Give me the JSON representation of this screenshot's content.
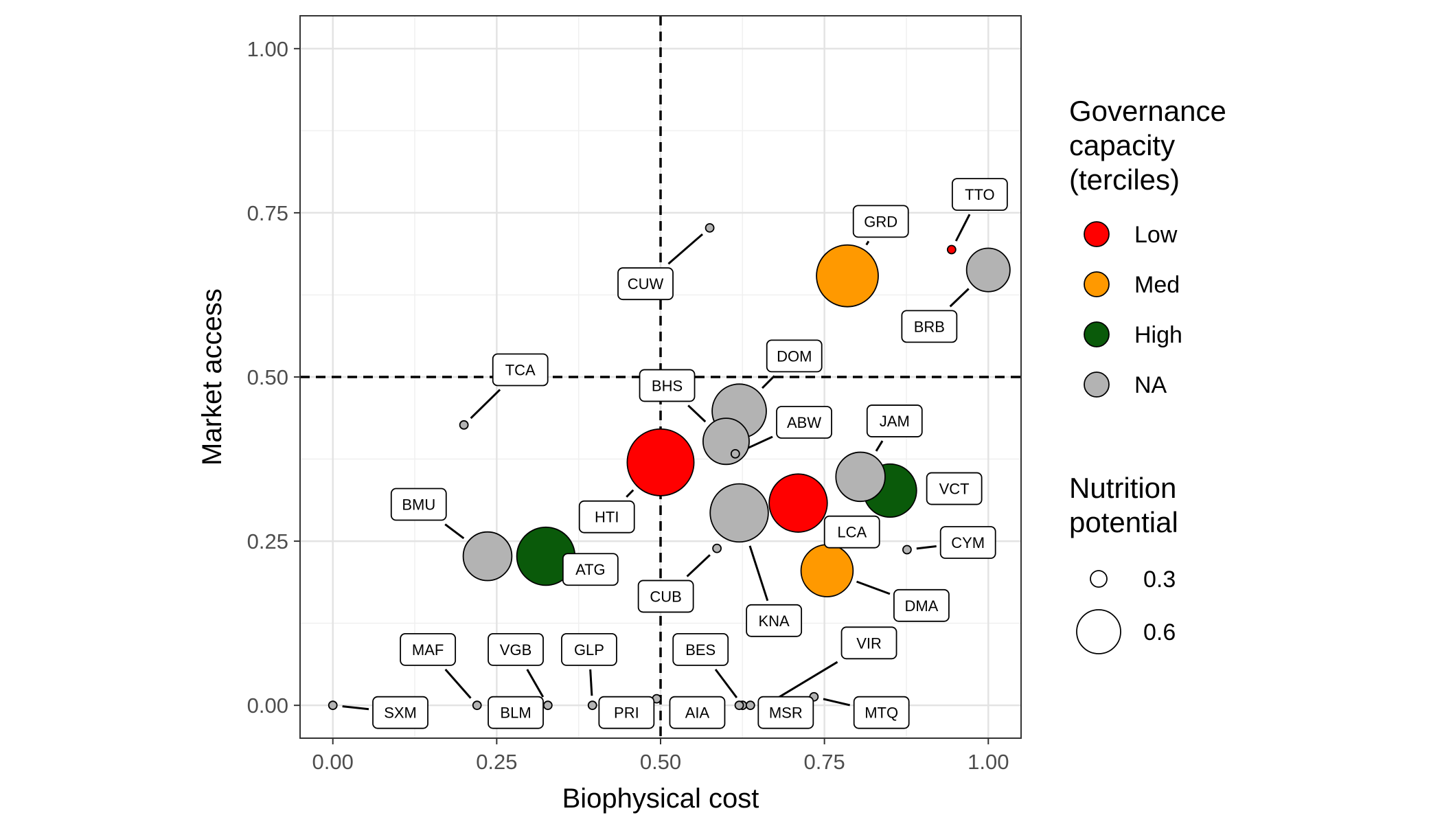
{
  "chart_data": {
    "type": "scatter",
    "xlabel": "Biophysical cost",
    "ylabel": "Market access",
    "xlim": [
      -0.05,
      1.05
    ],
    "ylim": [
      -0.05,
      1.05
    ],
    "x_ticks": [
      0,
      0.25,
      0.5,
      0.75,
      1
    ],
    "x_tick_labels": [
      "0.00",
      "0.25",
      "0.50",
      "0.75",
      "1.00"
    ],
    "y_ticks": [
      0,
      0.25,
      0.5,
      0.75,
      1
    ],
    "y_tick_labels": [
      "0.00",
      "0.25",
      "0.50",
      "0.75",
      "1.00"
    ],
    "grid": true,
    "reference_lines": {
      "x": 0.5,
      "y": 0.5,
      "style": "dashed"
    },
    "legend_placement": "right",
    "color_legend": {
      "title": [
        "Governance",
        "capacity",
        "(terciles)"
      ],
      "entries": [
        {
          "key": "Low",
          "label": "Low",
          "color": "#ff0000"
        },
        {
          "key": "Med",
          "label": "Med",
          "color": "#ff9900"
        },
        {
          "key": "High",
          "label": "High",
          "color": "#0a5a0a"
        },
        {
          "key": "NA",
          "label": "NA",
          "color": "#b3b3b3"
        }
      ]
    },
    "size_legend": {
      "title": [
        "Nutrition",
        "potential"
      ],
      "entries": [
        {
          "value": 0.3,
          "label": "0.3"
        },
        {
          "value": 0.6,
          "label": "0.6"
        }
      ]
    },
    "points": [
      {
        "label": "TTO",
        "x": 0.944,
        "y": 0.694,
        "size": 0.05,
        "group": "Low",
        "lx": 0.987,
        "ly": 0.778
      },
      {
        "label": "GRD",
        "x": 0.785,
        "y": 0.654,
        "size": 0.6,
        "group": "Med",
        "lx": 0.836,
        "ly": 0.737
      },
      {
        "label": "BRB",
        "x": 1.0,
        "y": 0.663,
        "size": 0.26,
        "group": "NA",
        "lx": 0.91,
        "ly": 0.577
      },
      {
        "label": "CUW",
        "x": 0.575,
        "y": 0.727,
        "size": 0.05,
        "group": "NA",
        "lx": 0.477,
        "ly": 0.642
      },
      {
        "label": "DOM",
        "x": 0.62,
        "y": 0.448,
        "size": 0.44,
        "group": "NA",
        "lx": 0.704,
        "ly": 0.532
      },
      {
        "label": "TCA",
        "x": 0.2,
        "y": 0.427,
        "size": 0.05,
        "group": "NA",
        "lx": 0.286,
        "ly": 0.511
      },
      {
        "label": "BHS",
        "x": 0.6,
        "y": 0.402,
        "size": 0.3,
        "group": "NA",
        "lx": 0.51,
        "ly": 0.487
      },
      {
        "label": "ABW",
        "x": 0.614,
        "y": 0.383,
        "size": 0.05,
        "group": "NA",
        "lx": 0.719,
        "ly": 0.431
      },
      {
        "label": "JAM",
        "x": 0.805,
        "y": 0.348,
        "size": 0.35,
        "group": "NA",
        "lx": 0.857,
        "ly": 0.433
      },
      {
        "label": "HTI",
        "x": 0.5,
        "y": 0.37,
        "size": 0.72,
        "group": "Low",
        "lx": 0.418,
        "ly": 0.287
      },
      {
        "label": "VCT",
        "x": 0.85,
        "y": 0.327,
        "size": 0.42,
        "group": "High",
        "lx": 0.948,
        "ly": 0.33
      },
      {
        "label": "BMU",
        "x": 0.236,
        "y": 0.227,
        "size": 0.34,
        "group": "NA",
        "lx": 0.131,
        "ly": 0.306
      },
      {
        "label": "LCA",
        "x": 0.71,
        "y": 0.308,
        "size": 0.52,
        "group": "Low",
        "lx": 0.792,
        "ly": 0.264
      },
      {
        "label": "KNA",
        "x": 0.62,
        "y": 0.293,
        "size": 0.52,
        "group": "NA",
        "lx": 0.673,
        "ly": 0.129
      },
      {
        "label": "ATG",
        "x": 0.325,
        "y": 0.227,
        "size": 0.52,
        "group": "High",
        "lx": 0.393,
        "ly": 0.207
      },
      {
        "label": "CYM",
        "x": 0.876,
        "y": 0.237,
        "size": 0.05,
        "group": "NA",
        "lx": 0.969,
        "ly": 0.248
      },
      {
        "label": "CUB",
        "x": 0.586,
        "y": 0.239,
        "size": 0.05,
        "group": "NA",
        "lx": 0.508,
        "ly": 0.166
      },
      {
        "label": "DMA",
        "x": 0.754,
        "y": 0.205,
        "size": 0.4,
        "group": "Med",
        "lx": 0.898,
        "ly": 0.152
      },
      {
        "label": "MAF",
        "x": 0.22,
        "y": 0.0,
        "size": 0.05,
        "group": "NA",
        "lx": 0.145,
        "ly": 0.085
      },
      {
        "label": "VGB",
        "x": 0.328,
        "y": 0.0,
        "size": 0.05,
        "group": "NA",
        "lx": 0.279,
        "ly": 0.085
      },
      {
        "label": "GLP",
        "x": 0.396,
        "y": 0.0,
        "size": 0.05,
        "group": "NA",
        "lx": 0.391,
        "ly": 0.085
      },
      {
        "label": "BES",
        "x": 0.625,
        "y": 0.0,
        "size": 0.05,
        "group": "NA",
        "lx": 0.561,
        "ly": 0.085
      },
      {
        "label": "VIR",
        "x": 0.66,
        "y": 0.0,
        "size": 0.05,
        "group": "NA",
        "lx": 0.818,
        "ly": 0.095
      },
      {
        "label": "SXM",
        "x": 0.0,
        "y": 0.0,
        "size": 0.05,
        "group": "NA",
        "lx": 0.103,
        "ly": -0.011
      },
      {
        "label": "BLM",
        "x": 0.263,
        "y": 0.0,
        "size": 0.05,
        "group": "NA",
        "lx": 0.279,
        "ly": -0.011
      },
      {
        "label": "PRI",
        "x": 0.494,
        "y": 0.01,
        "size": 0.05,
        "group": "NA",
        "lx": 0.448,
        "ly": -0.011
      },
      {
        "label": "AIA",
        "x": 0.62,
        "y": 0.0,
        "size": 0.05,
        "group": "NA",
        "lx": 0.556,
        "ly": -0.011
      },
      {
        "label": "MSR",
        "x": 0.637,
        "y": 0.0,
        "size": 0.05,
        "group": "NA",
        "lx": 0.691,
        "ly": -0.011
      },
      {
        "label": "MTQ",
        "x": 0.734,
        "y": 0.013,
        "size": 0.05,
        "group": "NA",
        "lx": 0.837,
        "ly": -0.011
      }
    ]
  }
}
